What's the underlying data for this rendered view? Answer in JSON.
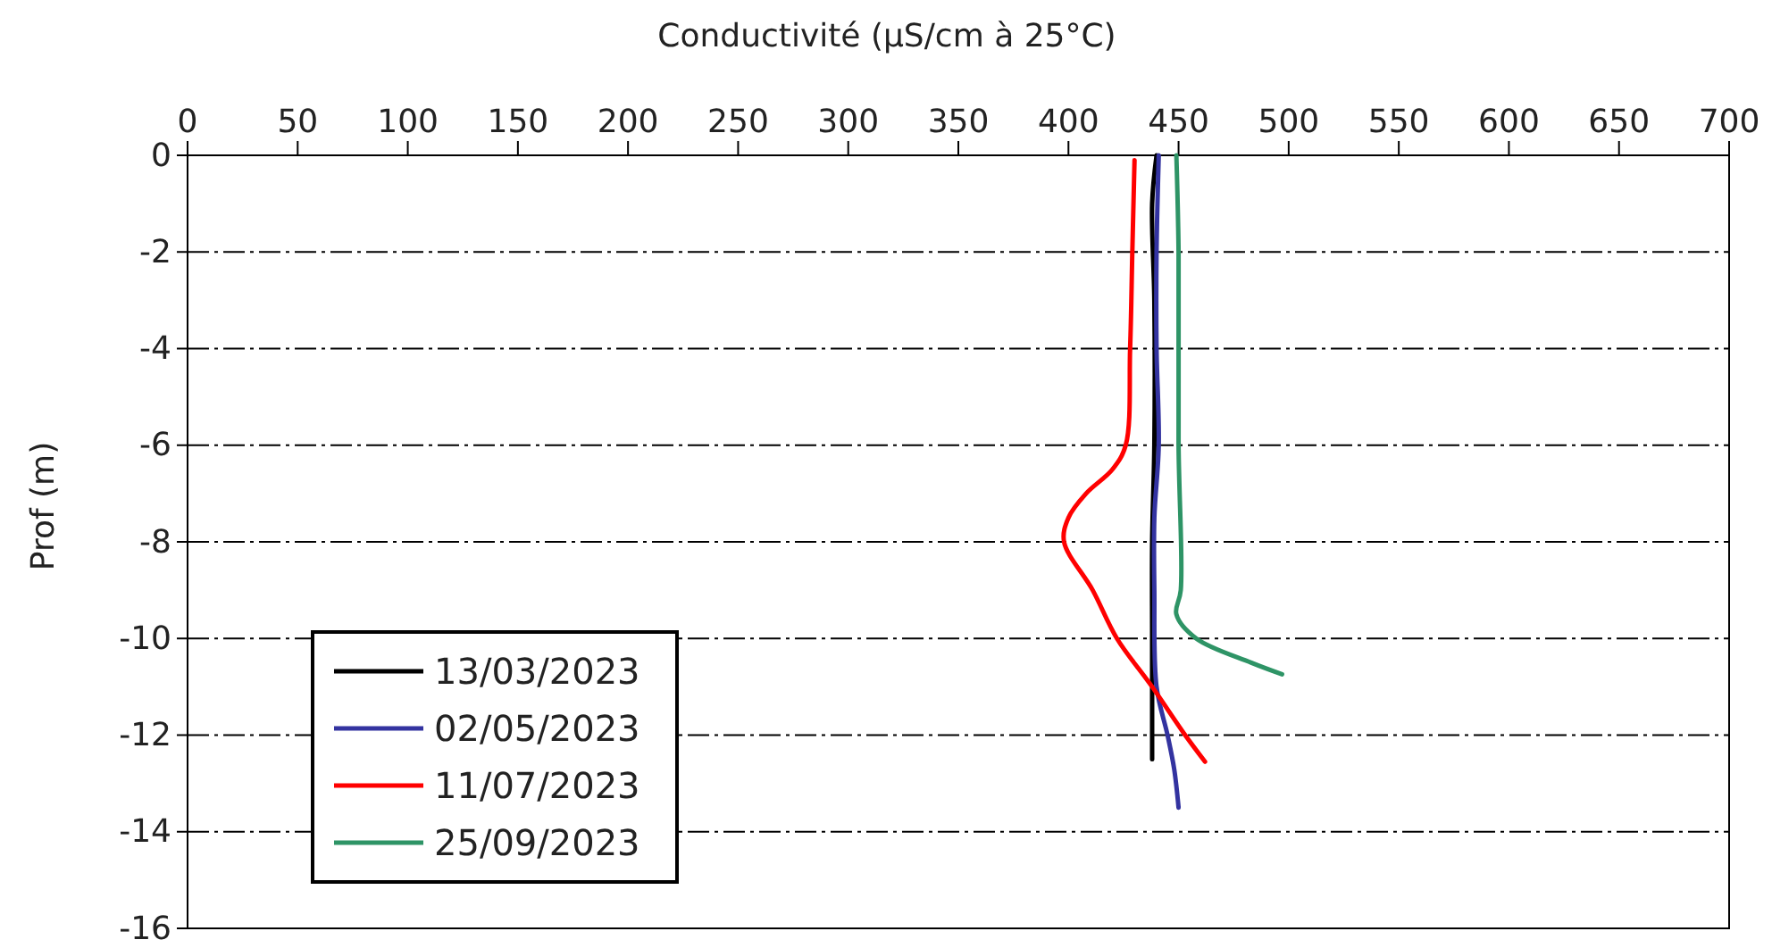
{
  "chart_data": {
    "type": "line",
    "xlabel": "Conductivité (µS/cm à 25°C)",
    "ylabel": "Prof (m)",
    "xlim": [
      0,
      700
    ],
    "xticks": [
      0,
      50,
      100,
      150,
      200,
      250,
      300,
      350,
      400,
      450,
      500,
      550,
      600,
      650,
      700
    ],
    "ylim": [
      -16,
      0
    ],
    "yticks": [
      0,
      -2,
      -4,
      -6,
      -8,
      -10,
      -12,
      -14,
      -16
    ],
    "grid": "y",
    "legend": "bottom left",
    "line_style": "solid",
    "marker": "none",
    "series": [
      {
        "name": "13/03/2023",
        "color": "#000000",
        "x": [
          440,
          438,
          439,
          439,
          438,
          438,
          438,
          438
        ],
        "values": [
          0,
          -1,
          -3,
          -6,
          -8,
          -10,
          -12,
          -12.5
        ]
      },
      {
        "name": "02/05/2023",
        "color": "#3333a0",
        "x": [
          441,
          440,
          440,
          441,
          439,
          439,
          440,
          445,
          448,
          450
        ],
        "values": [
          0,
          -2,
          -4,
          -6,
          -7.5,
          -9,
          -11,
          -12,
          -12.7,
          -13.5
        ]
      },
      {
        "name": "11/07/2023",
        "color": "#ff0000",
        "x": [
          430,
          429,
          428,
          426,
          420,
          408,
          400,
          398,
          411,
          422,
          438,
          453,
          462
        ],
        "values": [
          -0.1,
          -2,
          -4,
          -6,
          -6.5,
          -7,
          -7.5,
          -8,
          -9,
          -10,
          -11,
          -12,
          -12.55
        ]
      },
      {
        "name": "25/09/2023",
        "color": "#2e9466",
        "x": [
          449,
          450,
          450,
          451,
          449,
          458,
          483,
          497
        ],
        "values": [
          0,
          -2,
          -6,
          -9,
          -9.5,
          -10,
          -10.5,
          -10.74
        ]
      }
    ]
  }
}
